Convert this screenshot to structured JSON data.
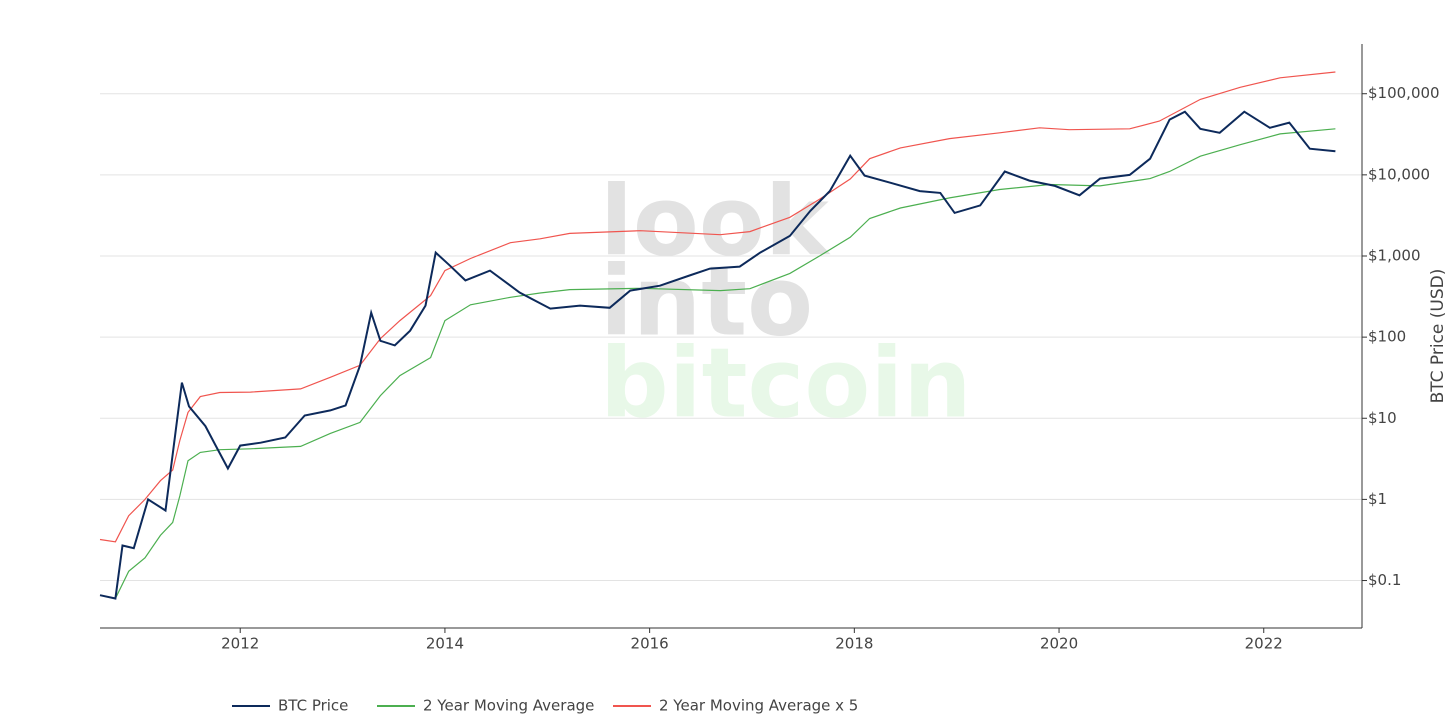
{
  "chart_data": {
    "type": "line",
    "log_y": true,
    "grid": true,
    "legend": "bottom",
    "y_axis_side": "right",
    "ylabel": "BTC Price (USD)",
    "watermark": [
      "look",
      "into",
      "bitcoin"
    ],
    "xlim": [
      2010.63,
      2022.96
    ],
    "xticks": [
      2012,
      2014,
      2016,
      2018,
      2020,
      2022
    ],
    "ylim": [
      0.026,
      410000
    ],
    "yticks": [
      {
        "value": 0.1,
        "label": "$0.1"
      },
      {
        "value": 1,
        "label": "$1"
      },
      {
        "value": 10,
        "label": "$10"
      },
      {
        "value": 100,
        "label": "$100"
      },
      {
        "value": 1000,
        "label": "$1,000"
      },
      {
        "value": 10000,
        "label": "$10,000"
      },
      {
        "value": 100000,
        "label": "$100,000"
      }
    ],
    "series": [
      {
        "name": "BTC Price",
        "color": "#0d2a5b",
        "x": [
          2010.63,
          2010.78,
          2010.85,
          2010.96,
          2011.1,
          2011.27,
          2011.37,
          2011.43,
          2011.5,
          2011.66,
          2011.76,
          2011.88,
          2012.0,
          2012.2,
          2012.44,
          2012.63,
          2012.88,
          2013.03,
          2013.17,
          2013.28,
          2013.37,
          2013.51,
          2013.66,
          2013.81,
          2013.91,
          2014.05,
          2014.2,
          2014.44,
          2014.73,
          2015.03,
          2015.32,
          2015.61,
          2015.81,
          2016.1,
          2016.39,
          2016.59,
          2016.88,
          2017.08,
          2017.37,
          2017.57,
          2017.76,
          2017.96,
          2018.1,
          2018.35,
          2018.64,
          2018.84,
          2018.98,
          2019.23,
          2019.47,
          2019.71,
          2019.96,
          2020.2,
          2020.4,
          2020.69,
          2020.89,
          2021.08,
          2021.23,
          2021.38,
          2021.57,
          2021.81,
          2022.06,
          2022.25,
          2022.45,
          2022.7
        ],
        "values": [
          0.066,
          0.06,
          0.27,
          0.25,
          1.0,
          0.73,
          7,
          27.5,
          14,
          8,
          4.6,
          2.4,
          4.6,
          5,
          5.8,
          10.8,
          12.5,
          14.4,
          44.6,
          200,
          90,
          79,
          120,
          245,
          1100,
          760,
          500,
          660,
          355,
          225,
          245,
          230,
          375,
          430,
          575,
          700,
          740,
          1100,
          1770,
          3600,
          6300,
          17200,
          9800,
          8000,
          6300,
          6000,
          3400,
          4200,
          11000,
          8500,
          7300,
          5600,
          9000,
          10000,
          15800,
          48000,
          60000,
          37000,
          33000,
          60000,
          38000,
          44000,
          21000,
          19500
        ]
      },
      {
        "name": "2 Year Moving Average",
        "color": "#4caf50",
        "x": [
          2010.78,
          2010.91,
          2011.07,
          2011.22,
          2011.34,
          2011.41,
          2011.49,
          2011.61,
          2011.8,
          2012.1,
          2012.59,
          2012.88,
          2013.17,
          2013.37,
          2013.56,
          2013.86,
          2014.0,
          2014.25,
          2014.64,
          2014.93,
          2015.22,
          2015.91,
          2016.69,
          2016.98,
          2017.37,
          2017.66,
          2017.96,
          2018.15,
          2018.45,
          2018.93,
          2019.42,
          2019.91,
          2020.4,
          2020.89,
          2021.08,
          2021.38,
          2021.77,
          2022.16,
          2022.7
        ],
        "values": [
          0.06,
          0.13,
          0.19,
          0.36,
          0.52,
          1.1,
          3.0,
          3.8,
          4.1,
          4.2,
          4.5,
          6.5,
          8.9,
          19,
          33.6,
          56,
          160,
          250,
          310,
          350,
          385,
          400,
          375,
          395,
          610,
          1000,
          1700,
          2900,
          3900,
          5200,
          6600,
          7600,
          7300,
          9000,
          11000,
          17000,
          23500,
          32000,
          37000
        ]
      },
      {
        "name": "2 Year Moving Average x 5",
        "color": "#f0554f",
        "x": [
          2010.63,
          2010.78,
          2010.91,
          2011.07,
          2011.22,
          2011.34,
          2011.41,
          2011.49,
          2011.61,
          2011.8,
          2012.1,
          2012.59,
          2012.88,
          2013.17,
          2013.37,
          2013.56,
          2013.86,
          2014.0,
          2014.25,
          2014.64,
          2014.93,
          2015.22,
          2015.91,
          2016.69,
          2016.98,
          2017.37,
          2017.66,
          2017.96,
          2018.15,
          2018.45,
          2018.93,
          2019.42,
          2019.81,
          2020.1,
          2020.69,
          2020.98,
          2021.38,
          2021.77,
          2022.16,
          2022.7
        ],
        "values": [
          0.32,
          0.3,
          0.63,
          1.0,
          1.7,
          2.3,
          5.3,
          11.8,
          18.5,
          20.8,
          21,
          23,
          32,
          45,
          96,
          160,
          325,
          660,
          930,
          1460,
          1630,
          1900,
          2050,
          1830,
          2000,
          3000,
          5000,
          8900,
          15800,
          21500,
          28000,
          33000,
          38000,
          36000,
          37000,
          46000,
          85000,
          120000,
          157000,
          185000
        ]
      }
    ]
  }
}
